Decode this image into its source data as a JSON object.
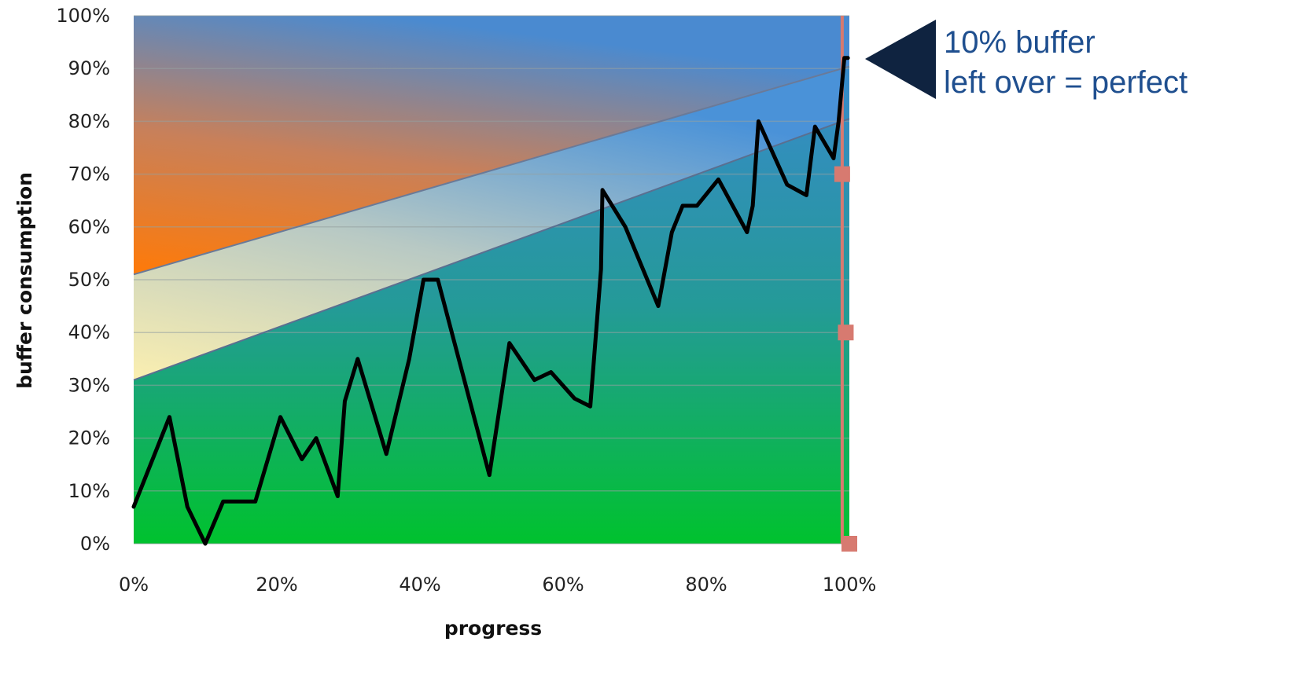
{
  "chart_data": {
    "type": "line",
    "title": "",
    "xlabel": "progress",
    "ylabel": "buffer consumption",
    "xlim": [
      0,
      100
    ],
    "ylim": [
      0,
      100
    ],
    "x_ticks": [
      "0%",
      "20%",
      "40%",
      "60%",
      "80%",
      "100%"
    ],
    "y_ticks": [
      "0%",
      "10%",
      "20%",
      "30%",
      "40%",
      "50%",
      "60%",
      "70%",
      "80%",
      "90%",
      "100%"
    ],
    "grid": true,
    "zones": {
      "green_upper_boundary": {
        "from": [
          0,
          31
        ],
        "to": [
          99,
          80
        ]
      },
      "red_lower_boundary": {
        "from": [
          0,
          51
        ],
        "to": [
          99,
          90
        ]
      },
      "colors": {
        "green": "#00c030",
        "yellow": "#f5eaa8",
        "red": "#ff7a10",
        "blue": "#3f8fd8"
      }
    },
    "series": [
      {
        "color": "#000000",
        "points": [
          [
            0,
            7
          ],
          [
            5,
            24
          ],
          [
            7.5,
            7
          ],
          [
            10,
            0
          ],
          [
            12.5,
            8
          ],
          [
            17,
            8
          ],
          [
            20.5,
            24
          ],
          [
            23.5,
            16
          ],
          [
            25.5,
            20
          ],
          [
            28.5,
            9
          ],
          [
            29.5,
            27
          ],
          [
            31.3,
            35
          ],
          [
            35.3,
            17
          ],
          [
            38.5,
            35
          ],
          [
            40.5,
            50
          ],
          [
            42.5,
            50
          ],
          [
            49.7,
            13
          ],
          [
            52.5,
            38
          ],
          [
            56,
            31
          ],
          [
            58.3,
            32.5
          ],
          [
            61.6,
            27.5
          ],
          [
            63.8,
            26
          ],
          [
            65.3,
            52
          ],
          [
            65.5,
            67
          ],
          [
            68.7,
            60
          ],
          [
            73.3,
            45
          ],
          [
            75.2,
            59
          ],
          [
            76.7,
            64
          ],
          [
            78.7,
            64
          ],
          [
            81.7,
            69
          ],
          [
            85.7,
            59
          ],
          [
            86.5,
            64
          ],
          [
            87.3,
            80
          ],
          [
            91.3,
            68
          ],
          [
            94,
            66
          ],
          [
            95.2,
            79
          ],
          [
            97.8,
            73
          ],
          [
            98.5,
            80
          ],
          [
            99.3,
            92
          ],
          [
            99.8,
            92
          ]
        ]
      },
      {
        "color": "#d77a70",
        "points": [
          [
            99,
            70
          ],
          [
            99.5,
            40
          ],
          [
            100,
            0
          ]
        ]
      }
    ]
  },
  "annotation": {
    "line1": "10% buffer",
    "line2": "left over = perfect",
    "text_color": "#1f4f8f",
    "arrow_color": "#0f2340"
  }
}
